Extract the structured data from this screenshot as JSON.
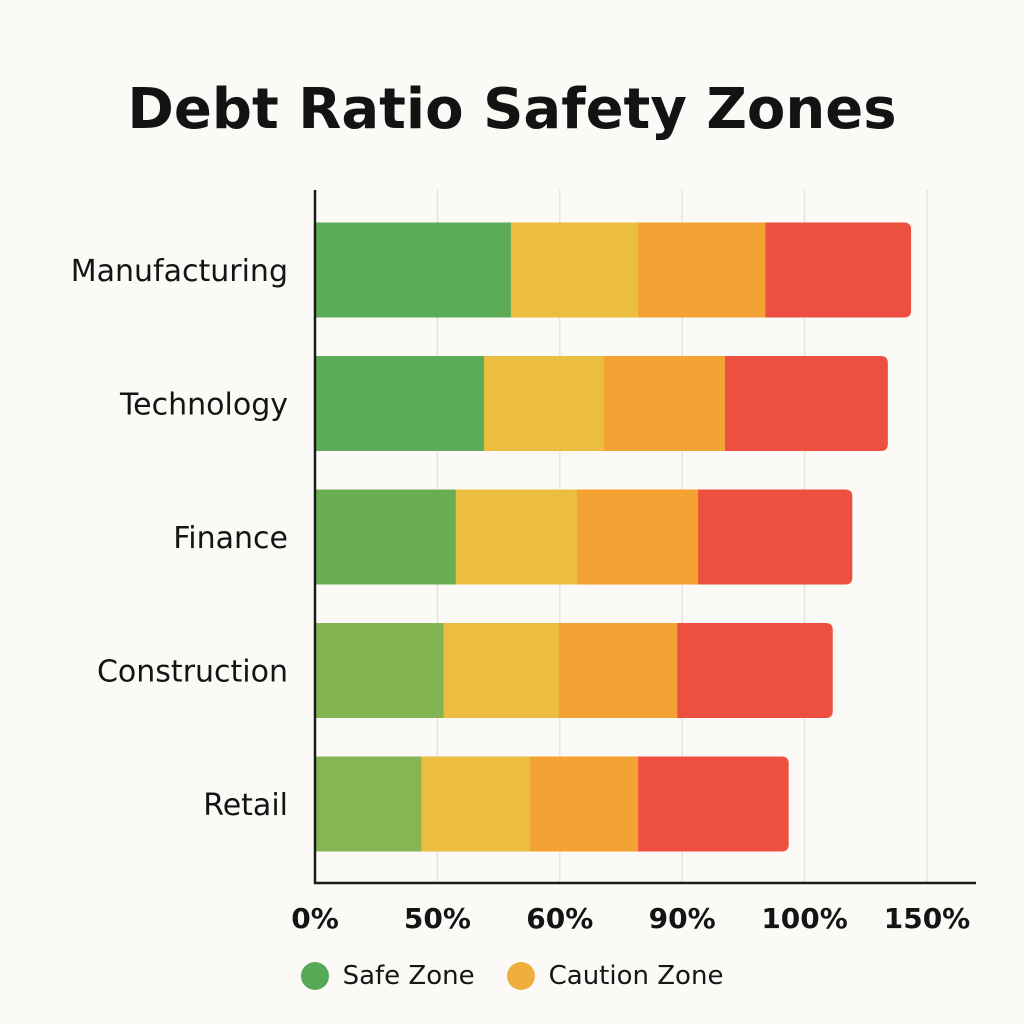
{
  "chart_data": {
    "type": "bar",
    "orientation": "horizontal",
    "stacked": true,
    "title": "Debt Ratio Safety Zones",
    "xlabel": "",
    "ylabel": "",
    "x_tick_labels": [
      "0%",
      "50%",
      "60%",
      "90%",
      "100%",
      "150%"
    ],
    "xlim": [
      0,
      5
    ],
    "grid": true,
    "legend_position": "bottom",
    "categories": [
      "Manufacturing",
      "Technology",
      "Finance",
      "Construction",
      "Retail"
    ],
    "series": [
      {
        "color": "#5cab58",
        "values": [
          1.6,
          1.38,
          1.15,
          1.05,
          0.87
        ]
      },
      {
        "color": "#ebbe42",
        "values": [
          1.04,
          0.98,
          0.99,
          0.94,
          0.89
        ]
      },
      {
        "color": "#f5a234",
        "values": [
          1.04,
          0.99,
          0.99,
          0.97,
          0.88
        ]
      },
      {
        "color": "#ee5040",
        "values": [
          1.19,
          1.33,
          1.26,
          1.27,
          1.23
        ]
      }
    ],
    "segment_colors": [
      [
        "#5cab58",
        "#ebbe42",
        "#f5a234",
        "#ee5040"
      ],
      [
        "#5cab58",
        "#ebbe42",
        "#f5a234",
        "#ee5040"
      ],
      [
        "#6aae53",
        "#ebbe42",
        "#f5a234",
        "#ee5040"
      ],
      [
        "#82b552",
        "#ebbe42",
        "#f5a234",
        "#ee5040"
      ],
      [
        "#86b553",
        "#ebbe42",
        "#f5a234",
        "#ee5040"
      ]
    ],
    "legend": [
      {
        "label": "Safe Zone",
        "color": "#57aa55"
      },
      {
        "label": "Caution Zone",
        "color": "#efae3c"
      }
    ]
  }
}
